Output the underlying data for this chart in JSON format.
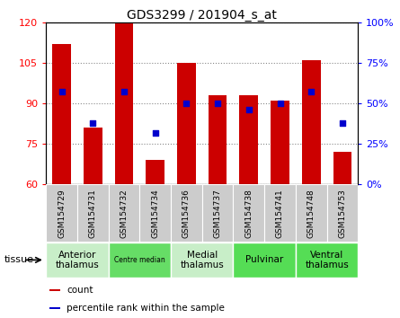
{
  "title": "GDS3299 / 201904_s_at",
  "samples": [
    "GSM154729",
    "GSM154731",
    "GSM154732",
    "GSM154734",
    "GSM154736",
    "GSM154737",
    "GSM154738",
    "GSM154741",
    "GSM154748",
    "GSM154753"
  ],
  "bar_values": [
    112,
    81,
    120,
    69,
    105,
    93,
    93,
    91,
    106,
    72
  ],
  "percentile_values": [
    57,
    38,
    57,
    32,
    50,
    50,
    46,
    50,
    57,
    38
  ],
  "ylim_left": [
    60,
    120
  ],
  "ylim_right": [
    0,
    100
  ],
  "yticks_left": [
    60,
    75,
    90,
    105,
    120
  ],
  "yticks_right": [
    0,
    25,
    50,
    75,
    100
  ],
  "ytick_labels_right": [
    "0%",
    "25%",
    "50%",
    "75%",
    "100%"
  ],
  "bar_color": "#cc0000",
  "percentile_color": "#0000cc",
  "bar_width": 0.6,
  "tissue_groups": [
    {
      "label": "Anterior\nthalamus",
      "start": 0,
      "end": 1,
      "color": "#c8eec8"
    },
    {
      "label": "Centre median",
      "start": 2,
      "end": 3,
      "color": "#66dd66"
    },
    {
      "label": "Medial\nthalamus",
      "start": 4,
      "end": 5,
      "color": "#c8eec8"
    },
    {
      "label": "Pulvinar",
      "start": 6,
      "end": 7,
      "color": "#55dd55"
    },
    {
      "label": "Ventral\nthalamus",
      "start": 8,
      "end": 9,
      "color": "#55dd55"
    }
  ],
  "tissue_label": "tissue",
  "legend_count_label": "count",
  "legend_percentile_label": "percentile rank within the sample",
  "grid_color": "#888888",
  "sample_bg": "#cccccc",
  "plot_bg": "#ffffff"
}
